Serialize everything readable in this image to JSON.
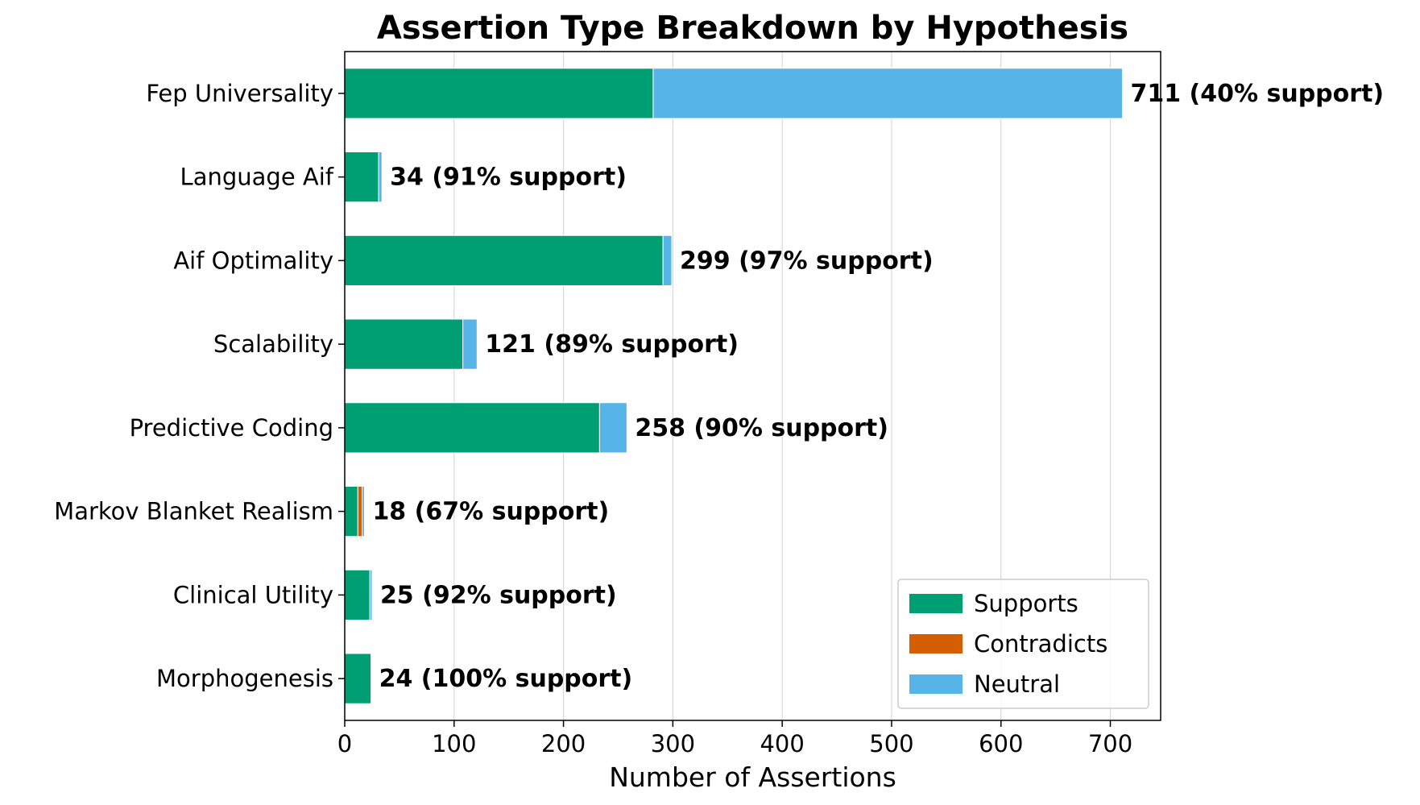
{
  "chart_data": {
    "type": "bar",
    "orientation": "horizontal",
    "stacked": true,
    "title": "Assertion Type Breakdown by Hypothesis",
    "xlabel": "Number of Assertions",
    "ylabel": "",
    "xlim": [
      0,
      746
    ],
    "xticks": [
      0,
      100,
      200,
      300,
      400,
      500,
      600,
      700
    ],
    "grid": "x",
    "legend_position": "lower-right",
    "categories": [
      "Fep Universality",
      "Language Aif",
      "Aif Optimality",
      "Scalability",
      "Predictive Coding",
      "Markov Blanket Realism",
      "Clinical Utility",
      "Morphogenesis"
    ],
    "series": [
      {
        "name": "Supports",
        "color": "#009E73",
        "values": [
          282,
          31,
          291,
          108,
          233,
          12,
          23,
          24
        ]
      },
      {
        "name": "Contradicts",
        "color": "#D55E00",
        "values": [
          0,
          0,
          0,
          0,
          0,
          4,
          0,
          0
        ]
      },
      {
        "name": "Neutral",
        "color": "#56B4E9",
        "values": [
          429,
          3,
          8,
          13,
          25,
          2,
          2,
          0
        ]
      }
    ],
    "totals": [
      711,
      34,
      299,
      121,
      258,
      18,
      25,
      24
    ],
    "bar_labels": [
      "711 (40% support)",
      "34 (91% support)",
      "299 (97% support)",
      "121 (89% support)",
      "258 (90% support)",
      "18 (67% support)",
      "25 (92% support)",
      "24 (100% support)"
    ]
  }
}
